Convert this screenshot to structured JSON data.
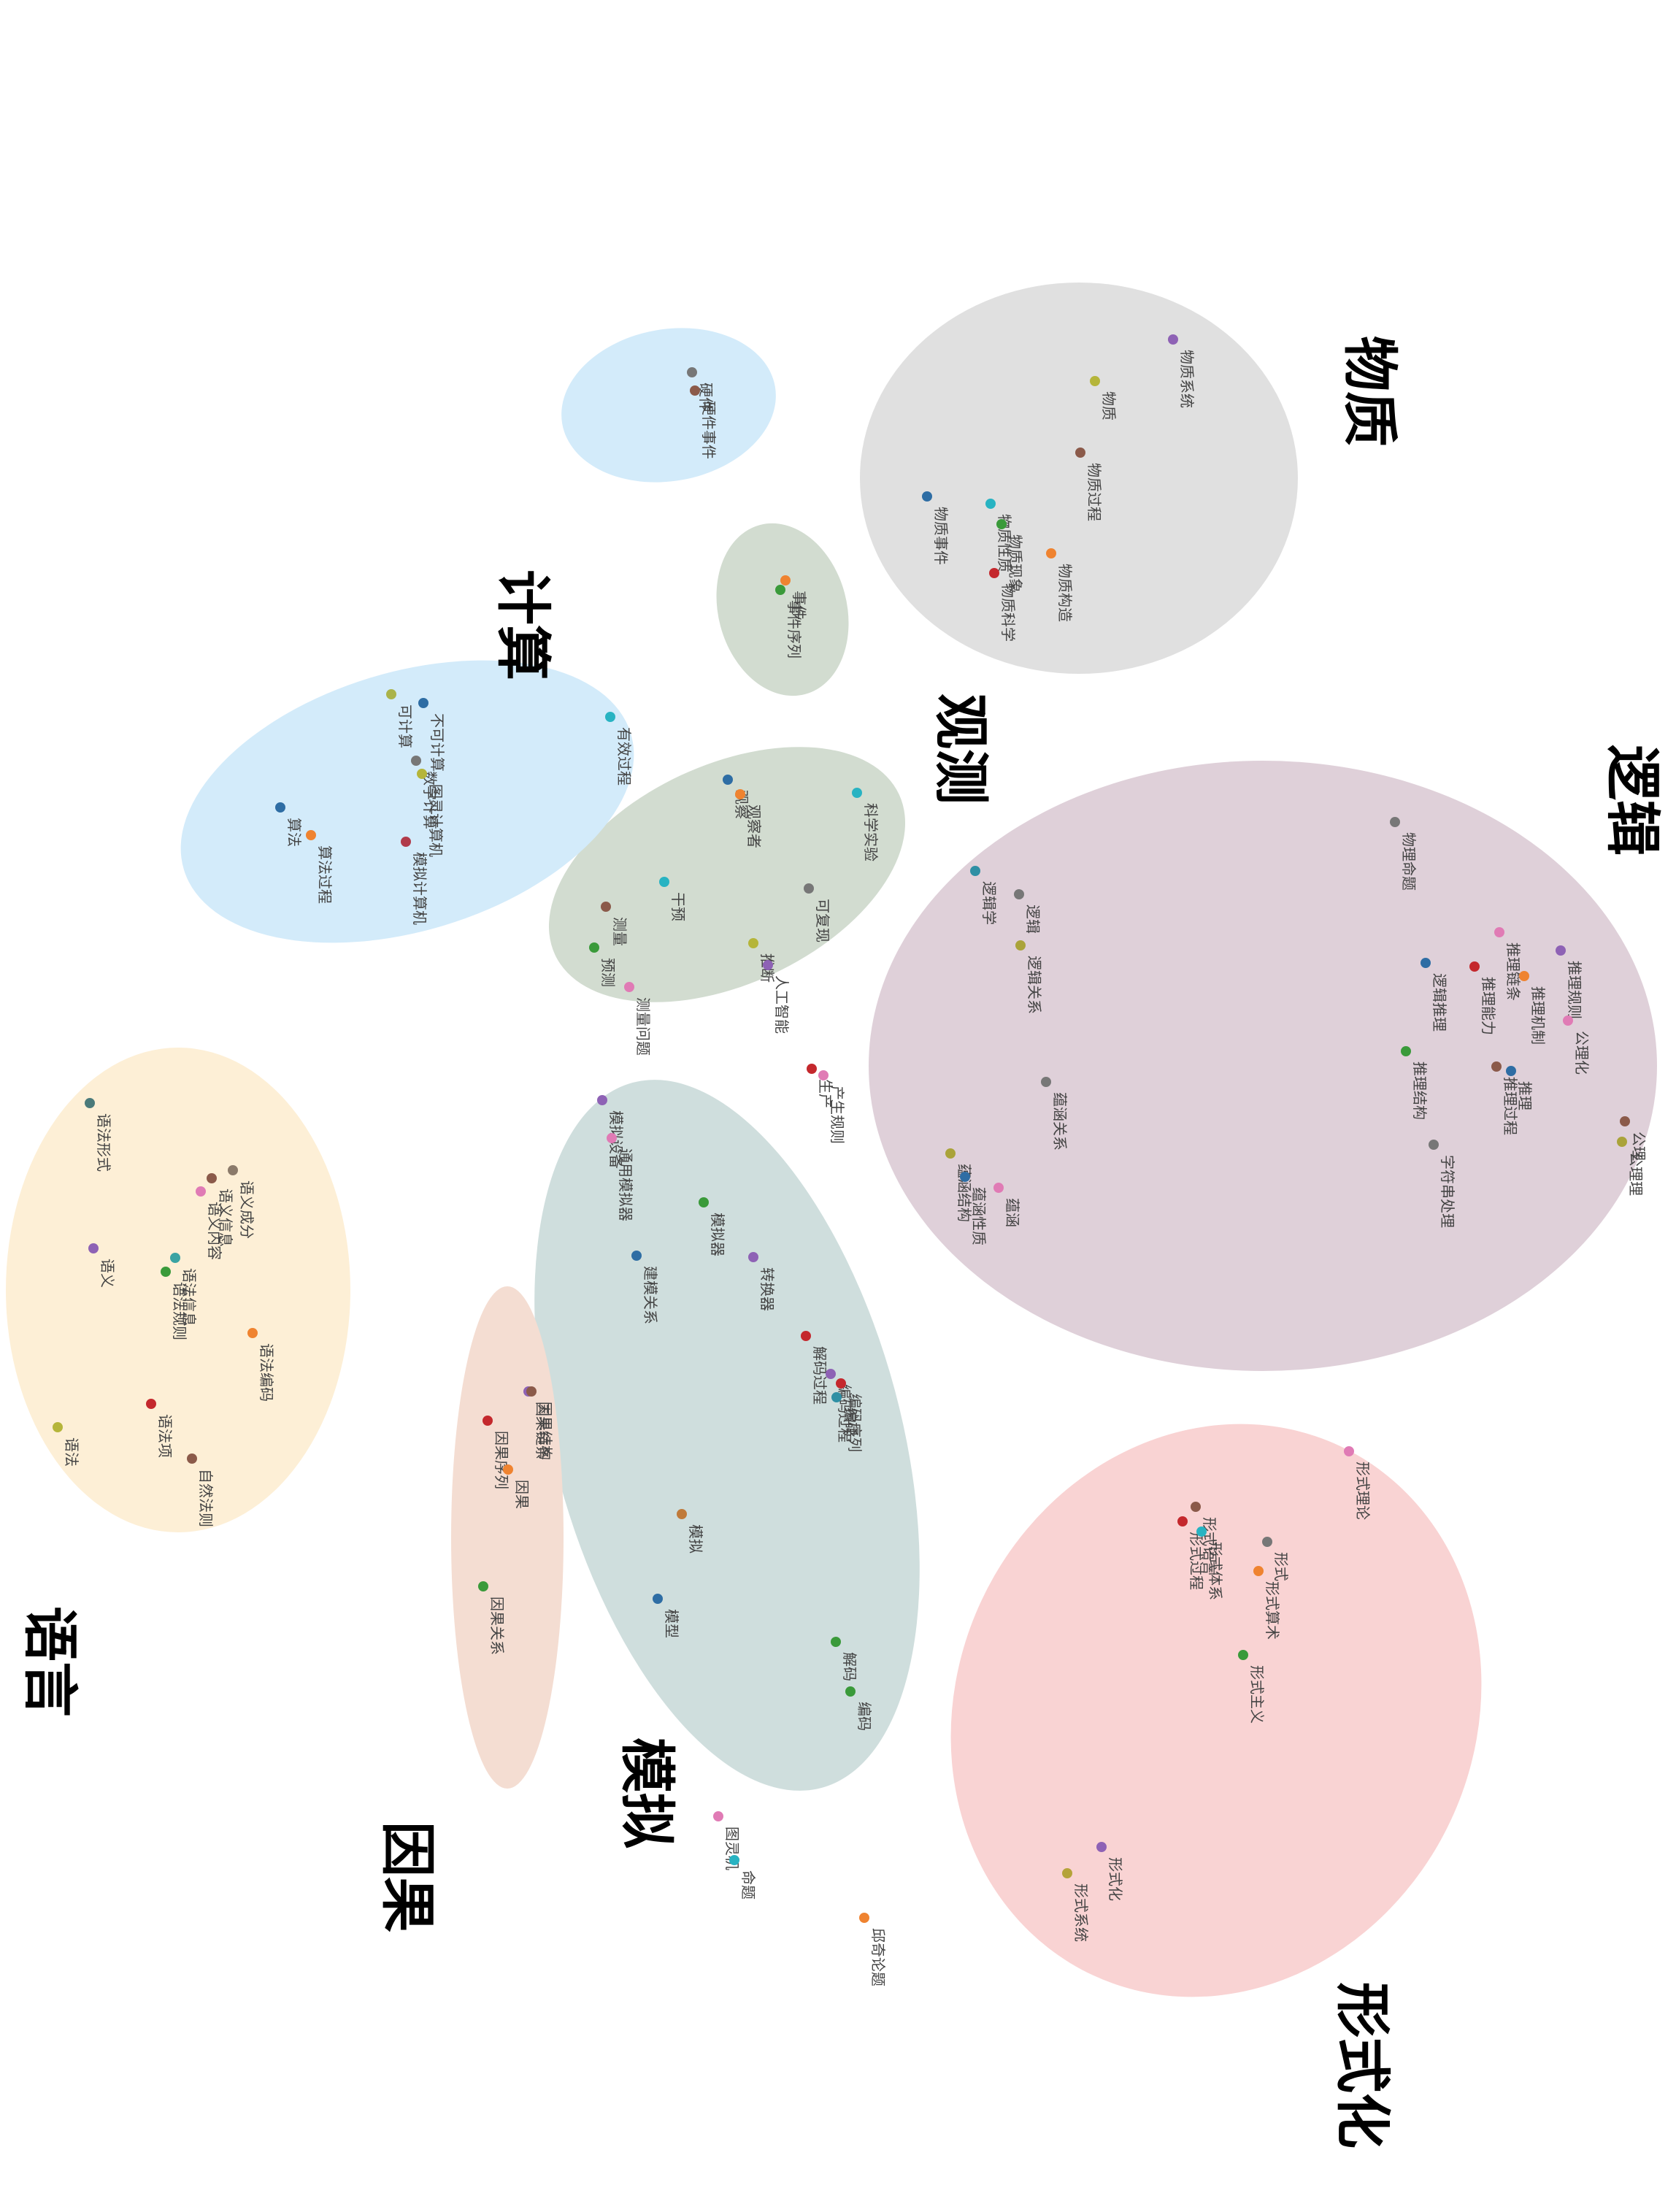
{
  "diagram": {
    "clusters": [
      {
        "id": "wuzhi",
        "label": "物质",
        "color": "#e0e0e0"
      },
      {
        "id": "jisuan",
        "label": "计算",
        "color": "#d3ebfa"
      },
      {
        "id": "guance",
        "label": "观测",
        "color": "#d2dcd0"
      },
      {
        "id": "luoji",
        "label": "逻辑",
        "color": "#dfd0d9"
      },
      {
        "id": "yuyan",
        "label": "语言",
        "color": "#fdefd6"
      },
      {
        "id": "moni",
        "label": "模拟",
        "color": "#cfdedd"
      },
      {
        "id": "yinguo",
        "label": "因果",
        "color": "#f4ddd2"
      },
      {
        "id": "xingshihua",
        "label": "形式化",
        "color": "#f9d3d3"
      }
    ],
    "points": [
      {
        "label": "物质系统",
        "color": "#8e62b5"
      },
      {
        "label": "物质",
        "color": "#b5b53a"
      },
      {
        "label": "物质过程",
        "color": "#8b5a4a"
      },
      {
        "label": "物质事件",
        "color": "#2e6da4"
      },
      {
        "label": "物质性质",
        "color": "#28b3c2"
      },
      {
        "label": "物质现象",
        "color": "#3a9a3a"
      },
      {
        "label": "物质科学",
        "color": "#c4282d"
      },
      {
        "label": "物质构造",
        "color": "#ef8330"
      },
      {
        "label": "硬件",
        "color": "#777777"
      },
      {
        "label": "硬件事件",
        "color": "#8b5a4a"
      },
      {
        "label": "事件",
        "color": "#ef8330"
      },
      {
        "label": "事件序列",
        "color": "#3a9a3a"
      },
      {
        "label": "有效过程",
        "color": "#28b3c2"
      },
      {
        "label": "不可计算",
        "color": "#2e6da4"
      },
      {
        "label": "可计算",
        "color": "#aab34a"
      },
      {
        "label": "数字计算",
        "color": "#777777"
      },
      {
        "label": "图灵计算机",
        "color": "#b5b53a"
      },
      {
        "label": "算法",
        "color": "#2e6da4"
      },
      {
        "label": "算法过程",
        "color": "#ef8330"
      },
      {
        "label": "模拟计算机",
        "color": "#b03a4a"
      },
      {
        "label": "科学实验",
        "color": "#28b3c2"
      },
      {
        "label": "观察",
        "color": "#2e6da4"
      },
      {
        "label": "观察者",
        "color": "#ef8330"
      },
      {
        "label": "可复现",
        "color": "#777777"
      },
      {
        "label": "干预",
        "color": "#28b3c2"
      },
      {
        "label": "测量",
        "color": "#8b5a4a"
      },
      {
        "label": "预测",
        "color": "#3a9a3a"
      },
      {
        "label": "测量问题",
        "color": "#e07bb5"
      },
      {
        "label": "推断",
        "color": "#b5b53a"
      },
      {
        "label": "人工智能",
        "color": "#8e62b5"
      },
      {
        "label": "生产",
        "color": "#c4282d"
      },
      {
        "label": "产生规则",
        "color": "#e07bb5"
      },
      {
        "label": "物理命题",
        "color": "#777777"
      },
      {
        "label": "逻辑学",
        "color": "#2e8fa4"
      },
      {
        "label": "逻辑",
        "color": "#777777"
      },
      {
        "label": "逻辑关系",
        "color": "#aaa33a"
      },
      {
        "label": "推理规则",
        "color": "#8e62b5"
      },
      {
        "label": "推理链条",
        "color": "#e07bb5"
      },
      {
        "label": "推理机制",
        "color": "#ef8330"
      },
      {
        "label": "推理能力",
        "color": "#c4282d"
      },
      {
        "label": "公理化",
        "color": "#e07bb5"
      },
      {
        "label": "逻辑推理",
        "color": "#2e6da4"
      },
      {
        "label": "推理",
        "color": "#2e6da4"
      },
      {
        "label": "推理过程",
        "color": "#8b5a4a"
      },
      {
        "label": "推理结构",
        "color": "#3a9a3a"
      },
      {
        "label": "蕴涵关系",
        "color": "#777777"
      },
      {
        "label": "公理",
        "color": "#8b5a4a"
      },
      {
        "label": "公理理",
        "color": "#aaa33a"
      },
      {
        "label": "字符串处理",
        "color": "#777777"
      },
      {
        "label": "蕴涵",
        "color": "#e07bb5"
      },
      {
        "label": "蕴涵结构",
        "color": "#aaa33a"
      },
      {
        "label": "蕴涵性质",
        "color": "#2e6da4"
      },
      {
        "label": "语法形式",
        "color": "#4a7a7a"
      },
      {
        "label": "语义成分",
        "color": "#8b7a6a"
      },
      {
        "label": "语义信息",
        "color": "#8b5a4a"
      },
      {
        "label": "语义内容",
        "color": "#e07bb5"
      },
      {
        "label": "语义",
        "color": "#8e62b5"
      },
      {
        "label": "语法信息",
        "color": "#3aa3a3"
      },
      {
        "label": "语法规则",
        "color": "#3a9a3a"
      },
      {
        "label": "语法编码",
        "color": "#ef8330"
      },
      {
        "label": "语法",
        "color": "#b5b53a"
      },
      {
        "label": "语法项",
        "color": "#c4282d"
      },
      {
        "label": "自然法则",
        "color": "#8b5a4a"
      },
      {
        "label": "模拟设备",
        "color": "#8e62b5"
      },
      {
        "label": "通用模拟器",
        "color": "#e07bb5"
      },
      {
        "label": "模拟器",
        "color": "#3a9a3a"
      },
      {
        "label": "转换器",
        "color": "#8e62b5"
      },
      {
        "label": "建模关系",
        "color": "#2e6da4"
      },
      {
        "label": "解码过程",
        "color": "#c4282d"
      },
      {
        "label": "编码过程",
        "color": "#8e62b5"
      },
      {
        "label": "编码序列",
        "color": "#c4282d"
      },
      {
        "label": "编码",
        "color": "#2e8fa4"
      },
      {
        "label": "模拟",
        "color": "#c07a3a"
      },
      {
        "label": "模型",
        "color": "#2e6da4"
      },
      {
        "label": "解码",
        "color": "#3a9a3a"
      },
      {
        "label": "编码",
        "color": "#3a9a3a"
      },
      {
        "label": "因果链条",
        "color": "#8e62b5"
      },
      {
        "label": "因果结构",
        "color": "#8b5a4a"
      },
      {
        "label": "因果序列",
        "color": "#c4282d"
      },
      {
        "label": "因果",
        "color": "#ef8330"
      },
      {
        "label": "因果关系",
        "color": "#3a9a3a"
      },
      {
        "label": "图灵机",
        "color": "#e07bb5"
      },
      {
        "label": "命题",
        "color": "#28b3c2"
      },
      {
        "label": "邱奇论题",
        "color": "#ef8330"
      },
      {
        "label": "形式理论",
        "color": "#e07bb5"
      },
      {
        "label": "形式语言",
        "color": "#8b5a4a"
      },
      {
        "label": "形式过程",
        "color": "#c4282d"
      },
      {
        "label": "形式体系",
        "color": "#28b3c2"
      },
      {
        "label": "形式",
        "color": "#777777"
      },
      {
        "label": "形式算术",
        "color": "#ef8330"
      },
      {
        "label": "形式主义",
        "color": "#3a9a3a"
      },
      {
        "label": "形式化",
        "color": "#8e62b5"
      },
      {
        "label": "形式系统",
        "color": "#b5a33a"
      }
    ]
  }
}
